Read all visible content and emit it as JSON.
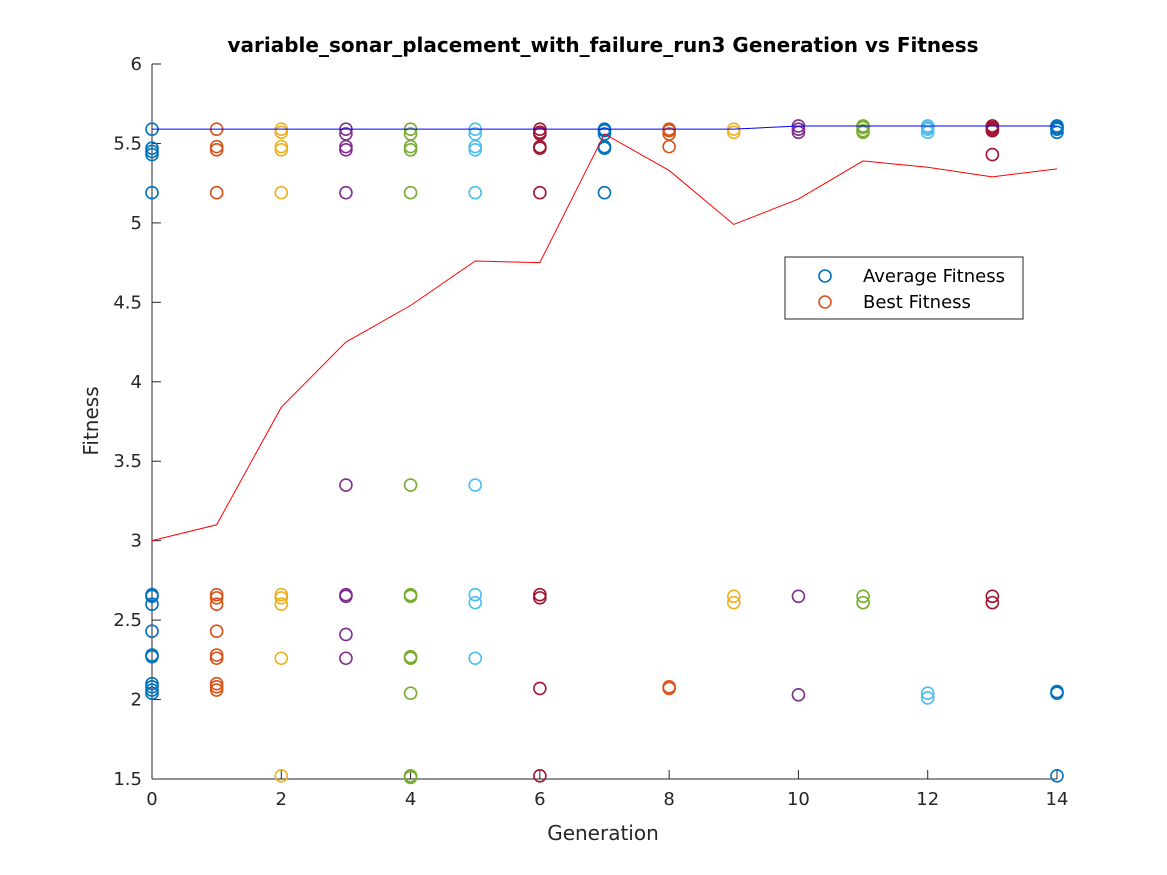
{
  "chart_data": {
    "type": "scatter",
    "title": "variable_sonar_placement_with_failure_run3 Generation vs Fitness",
    "xlabel": "Generation",
    "ylabel": "Fitness",
    "xlim": [
      0,
      14
    ],
    "ylim": [
      1.5,
      6
    ],
    "x_ticks": [
      0,
      2,
      4,
      6,
      8,
      10,
      12,
      14
    ],
    "y_ticks": [
      1.5,
      2,
      2.5,
      3,
      3.5,
      4,
      4.5,
      5,
      5.5,
      6
    ],
    "grid": false,
    "legend": {
      "position": "right-center",
      "entries": [
        {
          "label": "Average Fitness",
          "color": "#0072BD"
        },
        {
          "label": "Best Fitness",
          "color": "#D95319"
        }
      ]
    },
    "generation_colors": [
      "#0072BD",
      "#D95319",
      "#EDB120",
      "#7E2F8E",
      "#77AC30",
      "#4DBEEE",
      "#A2142F"
    ],
    "scatter_points": [
      {
        "generation": 0,
        "values": [
          5.59,
          5.47,
          5.45,
          5.43,
          5.19,
          2.66,
          2.65,
          2.6,
          2.43,
          2.28,
          2.27,
          2.1,
          2.08,
          2.06,
          2.04
        ]
      },
      {
        "generation": 1,
        "values": [
          5.59,
          5.48,
          5.46,
          5.19,
          2.66,
          2.64,
          2.6,
          2.43,
          2.28,
          2.26,
          2.1,
          2.08,
          2.06
        ]
      },
      {
        "generation": 2,
        "values": [
          5.59,
          5.57,
          5.48,
          5.46,
          5.19,
          2.66,
          2.64,
          2.6,
          2.26,
          1.52
        ]
      },
      {
        "generation": 3,
        "values": [
          5.59,
          5.56,
          5.48,
          5.46,
          5.19,
          3.35,
          2.66,
          2.65,
          2.41,
          2.26
        ]
      },
      {
        "generation": 4,
        "values": [
          5.59,
          5.56,
          5.48,
          5.46,
          5.19,
          3.35,
          2.66,
          2.65,
          2.27,
          2.26,
          2.04,
          1.52,
          1.51
        ]
      },
      {
        "generation": 5,
        "values": [
          5.59,
          5.56,
          5.48,
          5.46,
          5.19,
          3.35,
          2.66,
          2.61,
          2.26
        ]
      },
      {
        "generation": 6,
        "values": [
          5.59,
          5.57,
          5.56,
          5.48,
          5.47,
          5.19,
          2.66,
          2.64,
          2.07,
          1.52
        ]
      },
      {
        "generation": 7,
        "values": [
          5.59,
          5.58,
          5.56,
          5.48,
          5.47,
          5.19
        ]
      },
      {
        "generation": 8,
        "values": [
          5.59,
          5.58,
          5.56,
          5.48,
          2.08,
          2.07
        ]
      },
      {
        "generation": 9,
        "values": [
          5.59,
          5.57,
          2.65,
          2.61
        ]
      },
      {
        "generation": 10,
        "values": [
          5.61,
          5.59,
          5.57,
          2.65,
          2.03
        ]
      },
      {
        "generation": 11,
        "values": [
          5.61,
          5.6,
          5.58,
          5.57,
          2.65,
          2.61
        ]
      },
      {
        "generation": 12,
        "values": [
          5.61,
          5.6,
          5.59,
          5.57,
          2.04,
          2.01
        ]
      },
      {
        "generation": 13,
        "values": [
          5.61,
          5.6,
          5.59,
          5.58,
          5.43,
          2.65,
          2.61
        ]
      },
      {
        "generation": 14,
        "values": [
          5.61,
          5.6,
          5.59,
          5.57,
          2.05,
          2.04,
          1.52
        ]
      }
    ],
    "series": [
      {
        "name": "Average Fitness",
        "color": "#FF0000",
        "x": [
          0,
          1,
          2,
          3,
          4,
          5,
          6,
          7,
          8,
          9,
          10,
          11,
          12,
          13,
          14
        ],
        "y": [
          3.0,
          3.1,
          3.84,
          4.25,
          4.48,
          4.76,
          4.75,
          5.56,
          5.33,
          4.99,
          5.15,
          5.39,
          5.35,
          5.29,
          5.34
        ]
      },
      {
        "name": "Best Fitness",
        "color": "#0000FF",
        "x": [
          0,
          1,
          2,
          3,
          4,
          5,
          6,
          7,
          8,
          9,
          10,
          11,
          12,
          13,
          14
        ],
        "y": [
          5.59,
          5.59,
          5.59,
          5.59,
          5.59,
          5.59,
          5.59,
          5.59,
          5.59,
          5.59,
          5.61,
          5.61,
          5.61,
          5.61,
          5.61
        ]
      }
    ]
  }
}
